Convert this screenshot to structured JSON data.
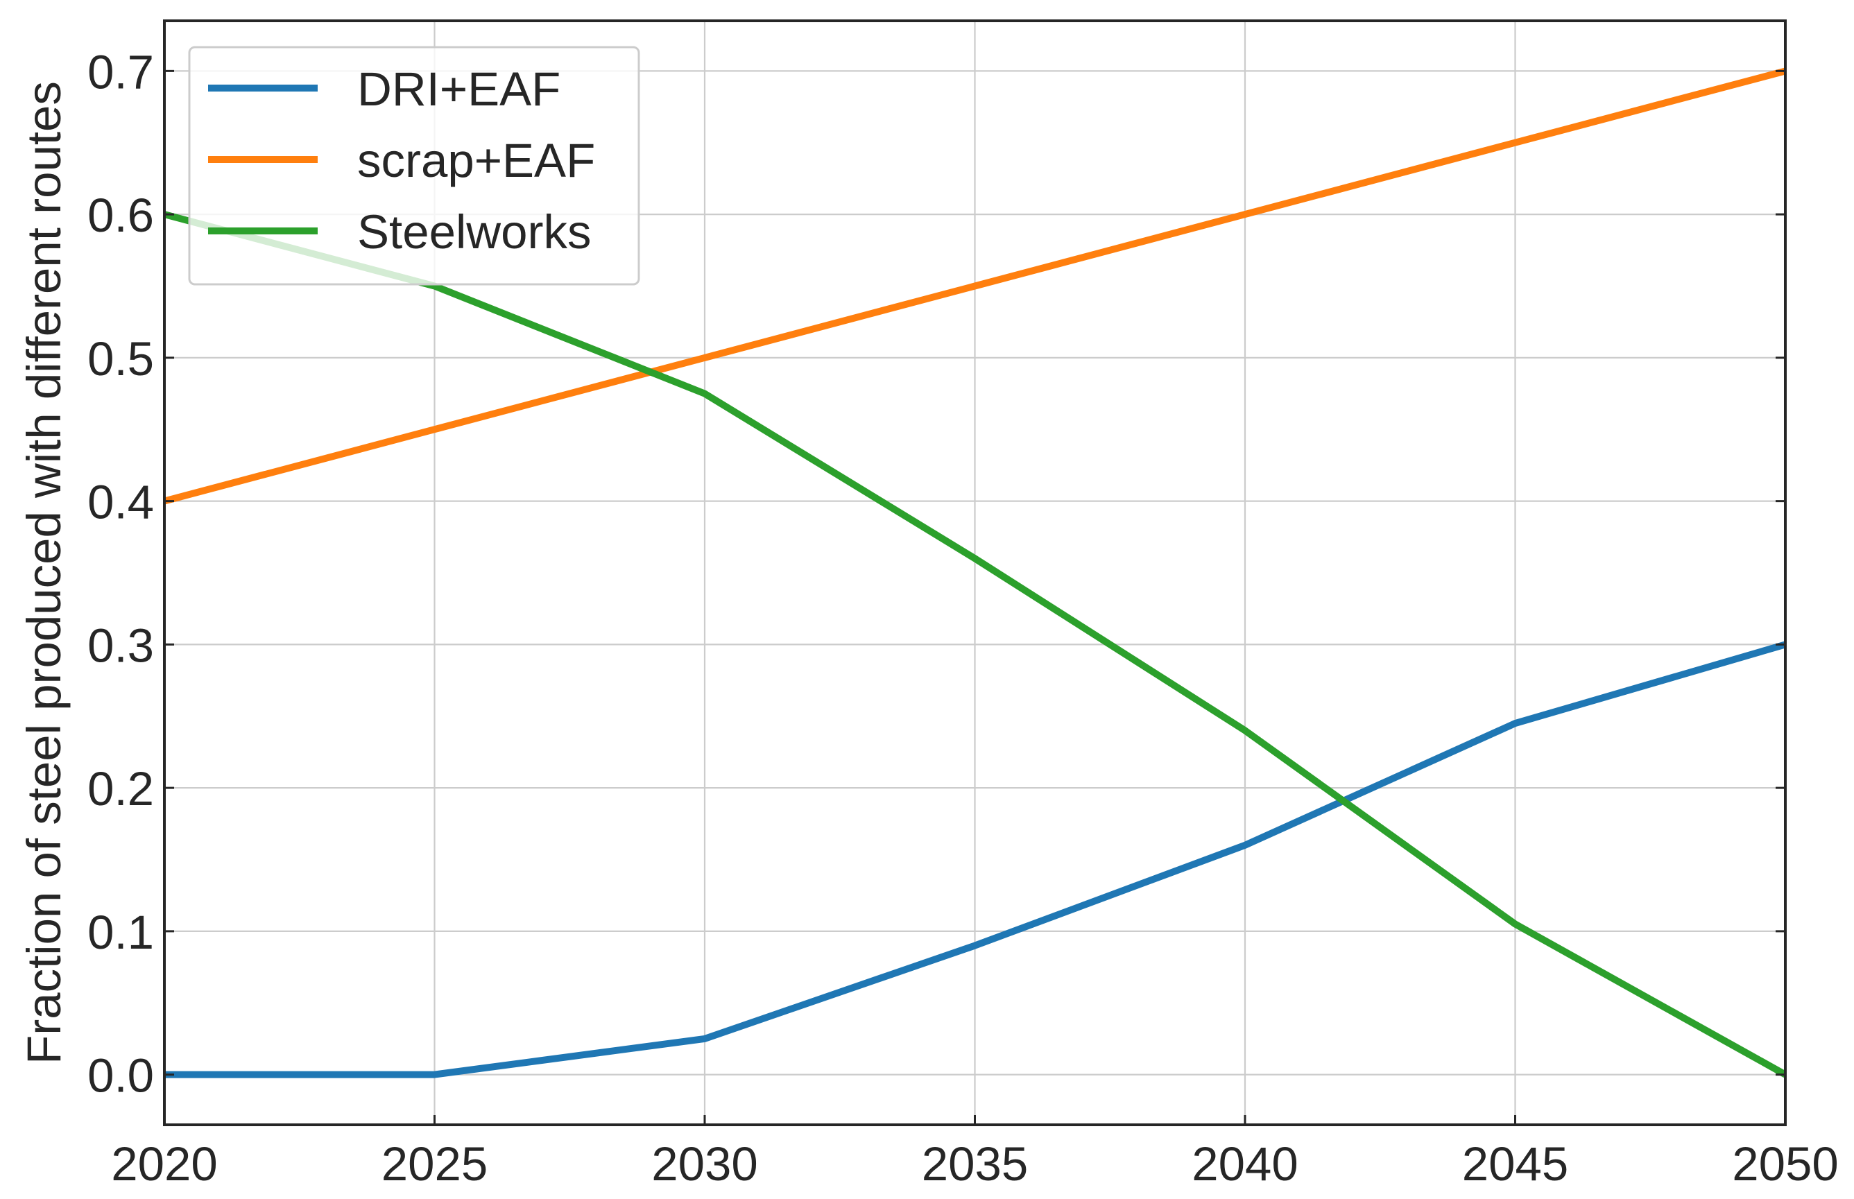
{
  "chart_data": {
    "type": "line",
    "title": "",
    "xlabel": "",
    "ylabel": "Fraction of steel produced with different routes",
    "x": [
      2020,
      2025,
      2030,
      2035,
      2040,
      2045,
      2050
    ],
    "xlim": [
      2020,
      2050
    ],
    "ylim": [
      -0.035,
      0.735
    ],
    "xticks": [
      2020,
      2025,
      2030,
      2035,
      2040,
      2045,
      2050
    ],
    "xtick_labels": [
      "2020",
      "2025",
      "2030",
      "2035",
      "2040",
      "2045",
      "2050"
    ],
    "yticks": [
      0.0,
      0.1,
      0.2,
      0.3,
      0.4,
      0.5,
      0.6,
      0.7
    ],
    "ytick_labels": [
      "0.0",
      "0.1",
      "0.2",
      "0.3",
      "0.4",
      "0.5",
      "0.6",
      "0.7"
    ],
    "grid": true,
    "legend_position": "top-left",
    "series": [
      {
        "name": "DRI+EAF",
        "color": "#1f77b4",
        "values": [
          0.0,
          0.0,
          0.025,
          0.09,
          0.16,
          0.245,
          0.3
        ]
      },
      {
        "name": "scrap+EAF",
        "color": "#ff7f0e",
        "values": [
          0.4,
          0.45,
          0.5,
          0.55,
          0.6,
          0.65,
          0.7
        ]
      },
      {
        "name": "Steelworks",
        "color": "#2ca02c",
        "values": [
          0.6,
          0.55,
          0.475,
          0.36,
          0.24,
          0.105,
          0.0
        ]
      }
    ]
  }
}
